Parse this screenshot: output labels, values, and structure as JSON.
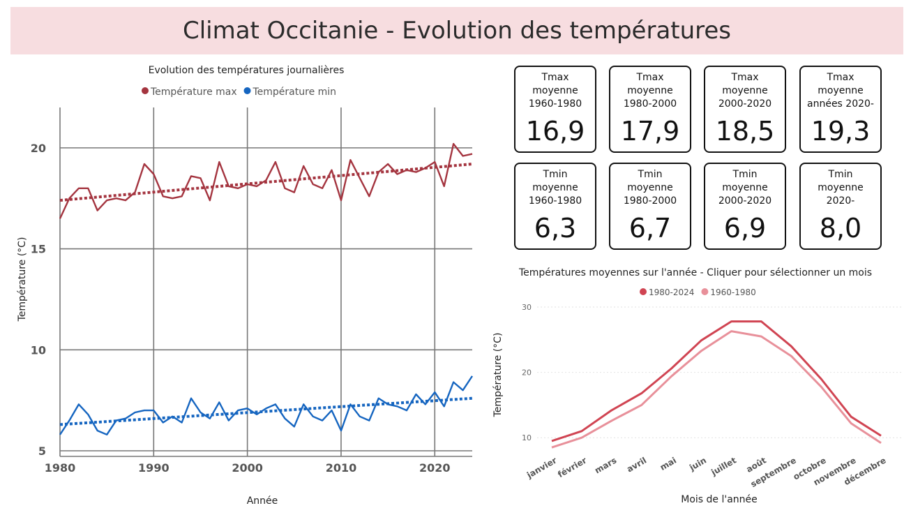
{
  "header": {
    "title": "Climat Occitanie - Evolution des températures"
  },
  "kpi_cards": [
    {
      "label": "Tmax\nmoyenne\n1960-1980",
      "value": "16,9"
    },
    {
      "label": "Tmax\nmoyenne\n1980-2000",
      "value": "17,9"
    },
    {
      "label": "Tmax\nmoyenne\n2000-2020",
      "value": "18,5"
    },
    {
      "label": "Tmax\nmoyenne\nannées 2020-",
      "value": "19,3"
    },
    {
      "label": "Tmin\nmoyenne\n1960-1980",
      "value": "6,3"
    },
    {
      "label": "Tmin\nmoyenne\n1980-2000",
      "value": "6,7"
    },
    {
      "label": "Tmin\nmoyenne\n2000-2020",
      "value": "6,9"
    },
    {
      "label": "Tmin\nmoyenne\n2020-",
      "value": "8,0"
    }
  ],
  "chart_data": [
    {
      "type": "line",
      "title": "Evolution des températures journalières",
      "xlabel": "Année",
      "ylabel": "Température (°C)",
      "xlim": [
        1980,
        2024
      ],
      "ylim": [
        5,
        22
      ],
      "xticks": [
        1980,
        1990,
        2000,
        2010,
        2020
      ],
      "yticks": [
        5,
        10,
        15,
        20
      ],
      "grid": true,
      "legend_position": "top",
      "x": [
        1980,
        1981,
        1982,
        1983,
        1984,
        1985,
        1986,
        1987,
        1988,
        1989,
        1990,
        1991,
        1992,
        1993,
        1994,
        1995,
        1996,
        1997,
        1998,
        1999,
        2000,
        2001,
        2002,
        2003,
        2004,
        2005,
        2006,
        2007,
        2008,
        2009,
        2010,
        2011,
        2012,
        2013,
        2014,
        2015,
        2016,
        2017,
        2018,
        2019,
        2020,
        2021,
        2022,
        2023,
        2024
      ],
      "series": [
        {
          "name": "Température max",
          "color": "#a4343f",
          "values": [
            16.5,
            17.5,
            18.0,
            18.0,
            16.9,
            17.4,
            17.5,
            17.4,
            17.8,
            19.2,
            18.7,
            17.6,
            17.5,
            17.6,
            18.6,
            18.5,
            17.4,
            19.3,
            18.1,
            18.0,
            18.2,
            18.1,
            18.4,
            19.3,
            18.0,
            17.8,
            19.1,
            18.2,
            18.0,
            18.9,
            17.4,
            19.4,
            18.5,
            17.6,
            18.8,
            19.2,
            18.7,
            18.9,
            18.8,
            19.0,
            19.3,
            18.1,
            20.2,
            19.6,
            19.7
          ],
          "trend": [
            17.4,
            19.2
          ]
        },
        {
          "name": "Température min",
          "color": "#1565c0",
          "values": [
            5.8,
            6.5,
            7.3,
            6.8,
            6.0,
            5.8,
            6.5,
            6.6,
            6.9,
            7.0,
            7.0,
            6.4,
            6.7,
            6.4,
            7.6,
            6.9,
            6.6,
            7.4,
            6.5,
            7.0,
            7.1,
            6.8,
            7.1,
            7.3,
            6.6,
            6.2,
            7.3,
            6.7,
            6.5,
            7.0,
            6.0,
            7.3,
            6.7,
            6.5,
            7.6,
            7.3,
            7.2,
            7.0,
            7.8,
            7.3,
            7.9,
            7.2,
            8.4,
            8.0,
            8.7
          ],
          "trend": [
            6.3,
            7.6
          ]
        }
      ]
    },
    {
      "type": "line",
      "title": "Températures moyennes sur l'année - Cliquer pour sélectionner un mois",
      "xlabel": "Mois de l'année",
      "ylabel": "Température (°C)",
      "ylim": [
        5,
        30
      ],
      "yticks": [
        10,
        20,
        30
      ],
      "legend_position": "top",
      "categories": [
        "janvier",
        "février",
        "mars",
        "avril",
        "mai",
        "juin",
        "juillet",
        "août",
        "septembre",
        "octobre",
        "novembre",
        "décembre"
      ],
      "series": [
        {
          "name": "1980-2024",
          "color": "#d04452",
          "values": [
            9.5,
            11.0,
            14.2,
            16.8,
            20.6,
            24.9,
            27.8,
            27.8,
            24.0,
            19.0,
            13.2,
            10.3
          ]
        },
        {
          "name": "1960-1980",
          "color": "#e8909a",
          "values": [
            8.5,
            10.0,
            12.6,
            15.0,
            19.4,
            23.3,
            26.3,
            25.5,
            22.5,
            17.8,
            12.2,
            9.2
          ]
        }
      ]
    }
  ]
}
